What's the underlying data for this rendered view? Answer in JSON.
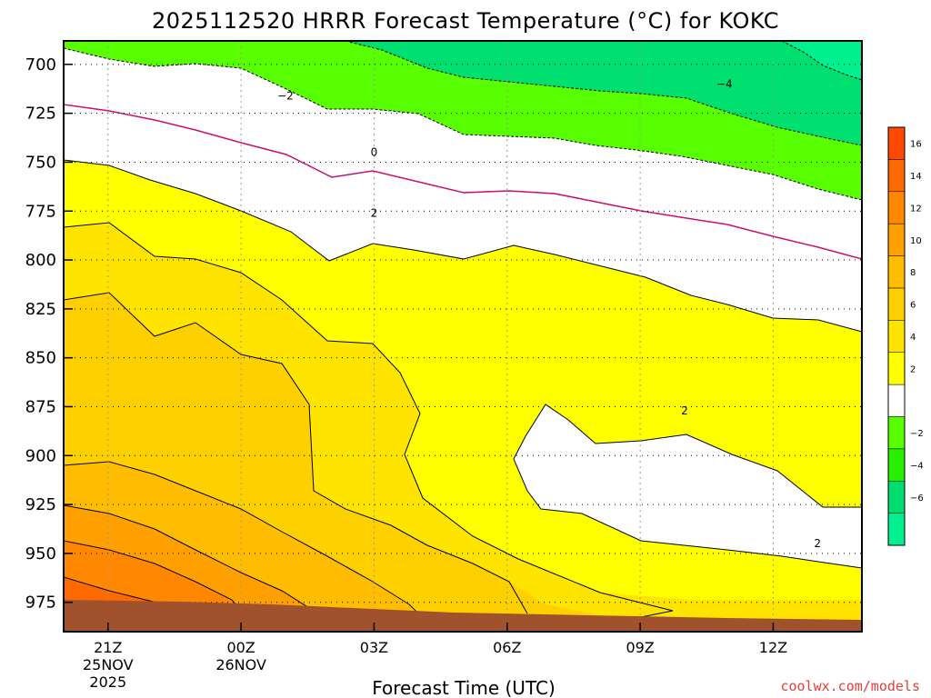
{
  "chart_data": {
    "type": "contour",
    "title": "2025112520 HRRR Forecast Temperature (°C) for KOKC",
    "xlabel": "Forecast Time (UTC)",
    "credit": "coolwx.com/models",
    "y_ticks": [
      "700",
      "725",
      "750",
      "775",
      "800",
      "825",
      "850",
      "875",
      "900",
      "925",
      "950",
      "975"
    ],
    "x_ticks": [
      {
        "label": "21Z",
        "date": "25NOV",
        "year": "2025"
      },
      {
        "label": "00Z",
        "date": "26NOV",
        "year": ""
      },
      {
        "label": "03Z",
        "date": "",
        "year": ""
      },
      {
        "label": "06Z",
        "date": "",
        "year": ""
      },
      {
        "label": "09Z",
        "date": "",
        "year": ""
      },
      {
        "label": "12Z",
        "date": "",
        "year": ""
      }
    ],
    "y_axis": {
      "unit": "hPa",
      "range": [
        688,
        990
      ],
      "inverted": true
    },
    "x_axis": {
      "unit": "hours after 21Z 25NOV",
      "range": [
        -1,
        17
      ]
    },
    "colorbar": {
      "levels": [
        {
          "label": "",
          "color": "#00f090"
        },
        {
          "label": "−6",
          "color": "#00dc6e"
        },
        {
          "label": "−4",
          "color": "#28f000"
        },
        {
          "label": "−2",
          "color": "#58ff00"
        },
        {
          "label": "",
          "color": "#ffffff"
        },
        {
          "label": "2",
          "color": "#ffff00"
        },
        {
          "label": "4",
          "color": "#ffe400"
        },
        {
          "label": "6",
          "color": "#ffd000"
        },
        {
          "label": "8",
          "color": "#ffbc00"
        },
        {
          "label": "10",
          "color": "#ffa000"
        },
        {
          "label": "12",
          "color": "#ff8800"
        },
        {
          "label": "14",
          "color": "#ff6a00"
        },
        {
          "label": "16",
          "color": "#ff4800"
        }
      ]
    },
    "contour_labels": [
      {
        "text": "−2",
        "x": 4.0,
        "y": 716
      },
      {
        "text": "−4",
        "x": 13.9,
        "y": 710
      },
      {
        "text": "0",
        "x": 6.0,
        "y": 745
      },
      {
        "text": "2",
        "x": 6.0,
        "y": 776
      },
      {
        "text": "2",
        "x": 13.0,
        "y": 877
      },
      {
        "text": "2",
        "x": 16.0,
        "y": 945
      }
    ],
    "ground_color": "#a0522d"
  }
}
